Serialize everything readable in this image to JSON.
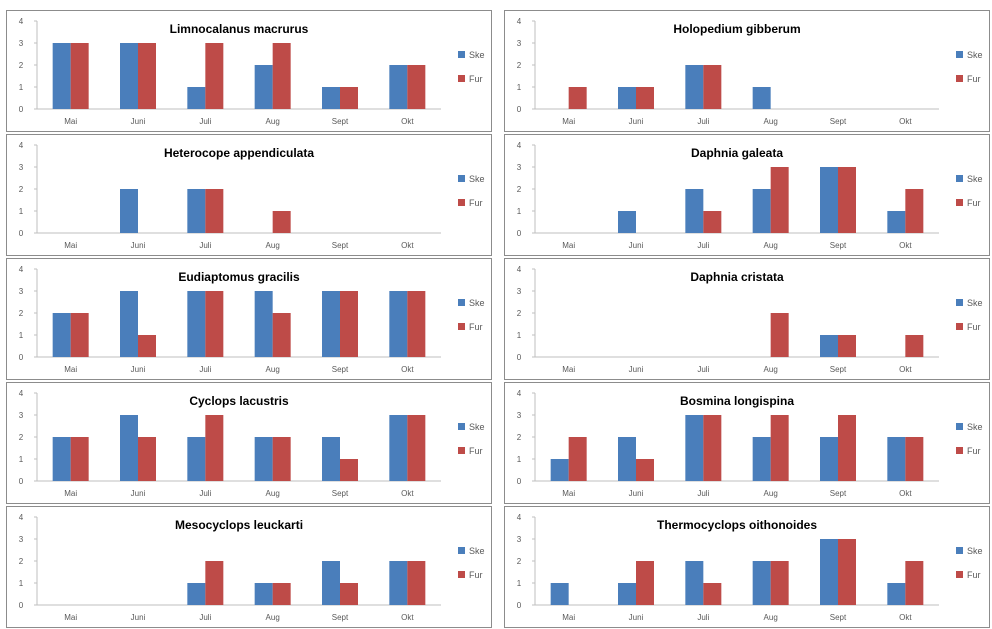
{
  "colors": {
    "series1": "#4a7ebb",
    "series2": "#be4b48"
  },
  "chart_data": [
    {
      "type": "bar",
      "title": "Limnocalanus macrurus",
      "categories": [
        "Mai",
        "Juni",
        "Juli",
        "Aug",
        "Sept",
        "Okt"
      ],
      "ylim": [
        0,
        4
      ],
      "yticks": [
        "0",
        "1",
        "2",
        "3",
        "4"
      ],
      "legend": "right",
      "series": [
        {
          "name": "Ske",
          "values": [
            3,
            3,
            1,
            2,
            1,
            2
          ]
        },
        {
          "name": "Fur",
          "values": [
            3,
            3,
            3,
            3,
            1,
            2
          ]
        }
      ]
    },
    {
      "type": "bar",
      "title": "Holopedium gibberum",
      "categories": [
        "Mai",
        "Juni",
        "Juli",
        "Aug",
        "Sept",
        "Okt"
      ],
      "ylim": [
        0,
        4
      ],
      "yticks": [
        "0",
        "1",
        "2",
        "3",
        "4"
      ],
      "legend": "right",
      "series": [
        {
          "name": "Ske",
          "values": [
            0,
            1,
            2,
            1,
            0,
            0
          ]
        },
        {
          "name": "Fur",
          "values": [
            1,
            1,
            2,
            0,
            0,
            0
          ]
        }
      ]
    },
    {
      "type": "bar",
      "title": "Heterocope appendiculata",
      "categories": [
        "Mai",
        "Juni",
        "Juli",
        "Aug",
        "Sept",
        "Okt"
      ],
      "ylim": [
        0,
        4
      ],
      "yticks": [
        "0",
        "1",
        "2",
        "3",
        "4"
      ],
      "legend": "right",
      "series": [
        {
          "name": "Ske",
          "values": [
            0,
            2,
            2,
            0,
            0,
            0
          ]
        },
        {
          "name": "Fur",
          "values": [
            0,
            0,
            2,
            1,
            0,
            0
          ]
        }
      ]
    },
    {
      "type": "bar",
      "title": "Daphnia galeata",
      "categories": [
        "Mai",
        "Juni",
        "Juli",
        "Aug",
        "Sept",
        "Okt"
      ],
      "ylim": [
        0,
        4
      ],
      "yticks": [
        "0",
        "1",
        "2",
        "3",
        "4"
      ],
      "legend": "right",
      "series": [
        {
          "name": "Ske",
          "values": [
            0,
            1,
            2,
            2,
            3,
            1
          ]
        },
        {
          "name": "Fur",
          "values": [
            0,
            0,
            1,
            3,
            3,
            2
          ]
        }
      ]
    },
    {
      "type": "bar",
      "title": "Eudiaptomus gracilis",
      "categories": [
        "Mai",
        "Juni",
        "Juli",
        "Aug",
        "Sept",
        "Okt"
      ],
      "ylim": [
        0,
        4
      ],
      "yticks": [
        "0",
        "1",
        "2",
        "3",
        "4"
      ],
      "legend": "right",
      "series": [
        {
          "name": "Ske",
          "values": [
            2,
            3,
            3,
            3,
            3,
            3
          ]
        },
        {
          "name": "Fur",
          "values": [
            2,
            1,
            3,
            2,
            3,
            3
          ]
        }
      ]
    },
    {
      "type": "bar",
      "title": "Daphnia cristata",
      "categories": [
        "Mai",
        "Juni",
        "Juli",
        "Aug",
        "Sept",
        "Okt"
      ],
      "ylim": [
        0,
        4
      ],
      "yticks": [
        "0",
        "1",
        "2",
        "3",
        "4"
      ],
      "legend": "right",
      "series": [
        {
          "name": "Ske",
          "values": [
            0,
            0,
            0,
            0,
            1,
            0
          ]
        },
        {
          "name": "Fur",
          "values": [
            0,
            0,
            0,
            2,
            1,
            1
          ]
        }
      ]
    },
    {
      "type": "bar",
      "title": "Cyclops lacustris",
      "categories": [
        "Mai",
        "Juni",
        "Juli",
        "Aug",
        "Sept",
        "Okt"
      ],
      "ylim": [
        0,
        4
      ],
      "yticks": [
        "0",
        "1",
        "2",
        "3",
        "4"
      ],
      "legend": "right",
      "series": [
        {
          "name": "Ske",
          "values": [
            2,
            3,
            2,
            2,
            2,
            3
          ]
        },
        {
          "name": "Fur",
          "values": [
            2,
            2,
            3,
            2,
            1,
            3
          ]
        }
      ]
    },
    {
      "type": "bar",
      "title": "Bosmina longispina",
      "categories": [
        "Mai",
        "Juni",
        "Juli",
        "Aug",
        "Sept",
        "Okt"
      ],
      "ylim": [
        0,
        4
      ],
      "yticks": [
        "0",
        "1",
        "2",
        "3",
        "4"
      ],
      "legend": "right",
      "series": [
        {
          "name": "Ske",
          "values": [
            1,
            2,
            3,
            2,
            2,
            2
          ]
        },
        {
          "name": "Fur",
          "values": [
            2,
            1,
            3,
            3,
            3,
            2
          ]
        }
      ]
    },
    {
      "type": "bar",
      "title": "Mesocyclops leuckarti",
      "categories": [
        "Mai",
        "Juni",
        "Juli",
        "Aug",
        "Sept",
        "Okt"
      ],
      "ylim": [
        0,
        4
      ],
      "yticks": [
        "0",
        "1",
        "2",
        "3",
        "4"
      ],
      "legend": "right",
      "series": [
        {
          "name": "Ske",
          "values": [
            0,
            0,
            1,
            1,
            2,
            2
          ]
        },
        {
          "name": "Fur",
          "values": [
            0,
            0,
            2,
            1,
            1,
            2
          ]
        }
      ]
    },
    {
      "type": "bar",
      "title": "Thermocyclops oithonoides",
      "categories": [
        "Mai",
        "Juni",
        "Juli",
        "Aug",
        "Sept",
        "Okt"
      ],
      "ylim": [
        0,
        4
      ],
      "yticks": [
        "0",
        "1",
        "2",
        "3",
        "4"
      ],
      "legend": "right",
      "series": [
        {
          "name": "Ske",
          "values": [
            1,
            1,
            2,
            2,
            3,
            1
          ]
        },
        {
          "name": "Fur",
          "values": [
            0,
            2,
            1,
            2,
            3,
            2
          ]
        }
      ]
    }
  ]
}
